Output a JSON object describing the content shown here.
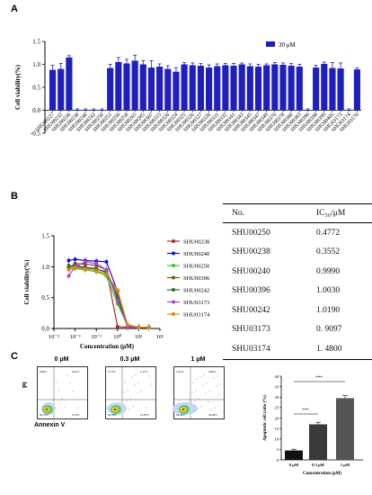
{
  "panel_letters": {
    "a": "A",
    "b": "B",
    "c": "C"
  },
  "chart_data": [
    {
      "panel": "A",
      "type": "bar",
      "ylabel": "Cell viability(%)",
      "xlabel": "",
      "ylim": [
        -0.5,
        1.5
      ],
      "yticks": [
        "-0.5",
        "0.0",
        "0.5",
        "1.0",
        "1.5"
      ],
      "legend": {
        "position": "top-right",
        "label": "30 μM"
      },
      "color": "#1f1fbf",
      "categories": [
        "SHU00227",
        "SHU00232",
        "SHU00236",
        "SHU00238",
        "SHU00240",
        "SHU00242",
        "SHU00250",
        "SHU00251",
        "SHU00256",
        "SHU00258",
        "SHU00265",
        "SHU00285",
        "SHU00307",
        "SHU00315",
        "SHU00320",
        "SHU00324",
        "SHU00325",
        "SHU00326",
        "SHU00327",
        "SHU00328",
        "SHU00331",
        "SHU00332",
        "SHU00341",
        "SHU00343",
        "SHU00345",
        "SHU00347",
        "SHU00349",
        "SHU00376",
        "SHU00378",
        "SHU00380",
        "SHU00383",
        "SHU00396",
        "SHU00398",
        "SHU00399",
        "SHU00405",
        "SHU03173",
        "SHU03174",
        "SHU03176"
      ],
      "values": [
        0.88,
        0.9,
        1.15,
        0.01,
        0.01,
        0.01,
        0.01,
        0.92,
        1.05,
        1.02,
        1.08,
        1.0,
        0.93,
        0.95,
        0.9,
        0.84,
        1.0,
        0.98,
        0.97,
        0.93,
        0.96,
        0.98,
        0.97,
        1.0,
        0.96,
        0.95,
        0.98,
        1.0,
        0.99,
        0.97,
        0.95,
        0.01,
        0.93,
        1.01,
        0.92,
        0.91,
        0.01,
        0.89
      ],
      "errors": [
        0.1,
        0.12,
        0.04,
        0.02,
        0.02,
        0.02,
        0.02,
        0.08,
        0.1,
        0.09,
        0.12,
        0.08,
        0.15,
        0.06,
        0.07,
        0.09,
        0.04,
        0.05,
        0.05,
        0.06,
        0.05,
        0.04,
        0.05,
        0.03,
        0.05,
        0.05,
        0.03,
        0.04,
        0.04,
        0.05,
        0.05,
        0.02,
        0.05,
        0.04,
        0.12,
        0.12,
        0.02,
        0.03
      ]
    },
    {
      "panel": "B",
      "type": "line",
      "ylabel": "Cell viability(%)",
      "xlabel": "Concentration (μM)",
      "xscale": "log",
      "xlim": [
        0.001,
        100
      ],
      "xticks": [
        "10⁻³",
        "10⁻²",
        "10⁻¹",
        "10⁰",
        "10¹",
        "10²"
      ],
      "ylim": [
        0,
        1.5
      ],
      "yticks": [
        "0.0",
        "0.5",
        "1.0",
        "1.5"
      ],
      "legend": {
        "position": "right"
      },
      "x": [
        0.005,
        0.01,
        0.03,
        0.1,
        0.3,
        1,
        3,
        10,
        30
      ],
      "series": [
        {
          "name": "SHU00238",
          "color": "#a0302a",
          "marker": "circle",
          "values": [
            0.98,
            1.05,
            1.04,
            1.02,
            0.95,
            0.03,
            0.02,
            0.02,
            0.02
          ]
        },
        {
          "name": "SHU00240",
          "color": "#1414d0",
          "marker": "square",
          "values": [
            1.1,
            1.12,
            1.1,
            1.09,
            1.08,
            0.6,
            0.03,
            0.02,
            0.02
          ]
        },
        {
          "name": "SHU00250",
          "color": "#38c82c",
          "marker": "triangle-up",
          "values": [
            1.0,
            0.97,
            0.95,
            0.92,
            0.85,
            0.4,
            0.04,
            0.02,
            0.02
          ]
        },
        {
          "name": "SHU00396",
          "color": "#7a5a1a",
          "marker": "triangle-down",
          "values": [
            1.02,
            1.0,
            0.98,
            0.96,
            0.92,
            0.55,
            0.05,
            0.02,
            0.02
          ]
        },
        {
          "name": "SHU00242",
          "color": "#2f6a2f",
          "marker": "diamond",
          "values": [
            1.0,
            1.02,
            0.99,
            0.97,
            0.9,
            0.5,
            0.04,
            0.02,
            0.02
          ]
        },
        {
          "name": "SHU03173",
          "color": "#a24ac8",
          "marker": "circle",
          "values": [
            0.85,
            1.0,
            1.08,
            1.05,
            0.95,
            0.45,
            0.03,
            0.02,
            0.02
          ]
        },
        {
          "name": "SHU03174",
          "color": "#d88a18",
          "marker": "cross",
          "values": [
            0.95,
            0.98,
            0.96,
            0.93,
            0.88,
            0.62,
            0.06,
            0.02,
            0.02
          ]
        }
      ]
    },
    {
      "panel": "C",
      "type": "bar",
      "ylabel": "Apoptotic cell ratio (%)",
      "xlabel": "Concentration (μM)",
      "ylim": [
        0,
        40
      ],
      "yticks": [
        "0",
        "5",
        "10",
        "15",
        "20",
        "25",
        "30",
        "35",
        "40"
      ],
      "categories": [
        "0 μM",
        "0.3 μM",
        "1 μM"
      ],
      "values": [
        4.5,
        17.0,
        29.5
      ],
      "errors": [
        0.6,
        1.0,
        1.2
      ],
      "colors": [
        "#111111",
        "#3a3a3a",
        "#555555"
      ],
      "significance": [
        "***",
        "***"
      ]
    }
  ],
  "ic50_table": {
    "headers": [
      "No.",
      "IC₅₀/μM"
    ],
    "rows": [
      [
        "SHU00250",
        "0.4772"
      ],
      [
        "SHU00238",
        "0.3552"
      ],
      [
        "SHU00240",
        "0.9990"
      ],
      [
        "SHU00396",
        "1.0030"
      ],
      [
        "SHU00242",
        "1.0190"
      ],
      [
        "SHU03173",
        "0. 9097"
      ],
      [
        "SHU03174",
        "1. 4800"
      ]
    ]
  },
  "flow_cytometry": {
    "ylabel": "PI",
    "xlabel": "Annexin V",
    "plots": [
      {
        "label": "0 μM",
        "quadrants": [
          "0.86%",
          "0.02%",
          "2.33%",
          "96.79%"
        ]
      },
      {
        "label": "0.3 μM",
        "quadrants": [
          "0.74%",
          "2.11%",
          "14.87%",
          "82.28%"
        ]
      },
      {
        "label": "1 μM",
        "quadrants": [
          "1.02%",
          "4.86%",
          "24.66%",
          "69.46%"
        ]
      }
    ]
  }
}
